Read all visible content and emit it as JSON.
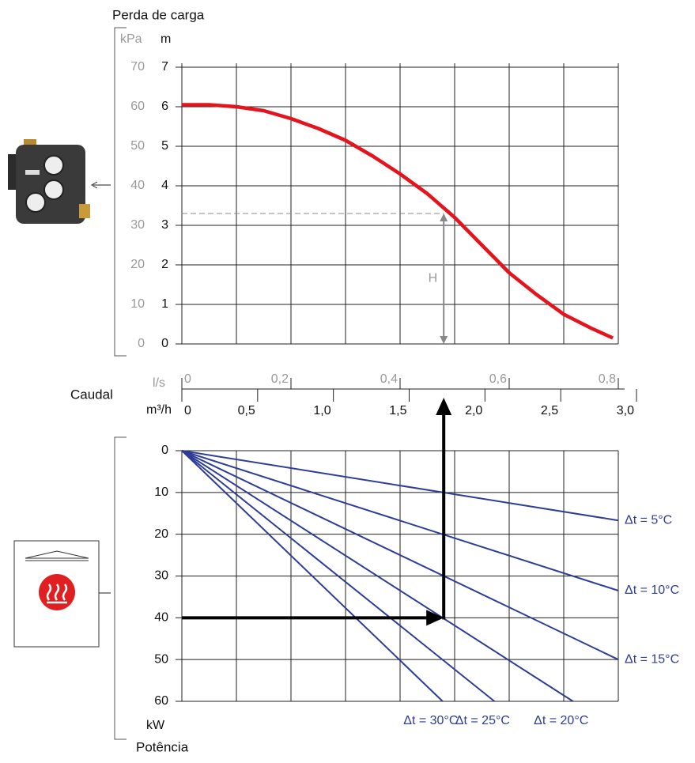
{
  "chart_data": [
    {
      "type": "line",
      "title": "Perda de carga",
      "y_label": "m",
      "y2_label": "kPa",
      "x_label": "Caudal",
      "x_unit": "l/s",
      "x2_unit": "m³/h",
      "xlim": [
        0,
        0.8
      ],
      "xticks": [
        0,
        {
          "value": 0.2,
          "label": "0,2"
        },
        {
          "value": 0.4,
          "label": "0,4"
        },
        {
          "value": 0.6,
          "label": "0,6"
        },
        {
          "value": 0.8,
          "label": "0,8"
        }
      ],
      "xgrid": [
        0,
        0.1,
        0.2,
        0.3,
        0.4,
        0.5,
        0.6,
        0.7,
        0.8
      ],
      "x2lim": [
        0,
        2.88
      ],
      "x2ticks": [
        0,
        {
          "value": 0.5,
          "label": "0,5"
        },
        {
          "value": 1.0,
          "label": "1,0"
        },
        {
          "value": 1.5,
          "label": "1,5"
        },
        {
          "value": 2.0,
          "label": "2,0"
        },
        {
          "value": 2.5,
          "label": "2,5"
        },
        {
          "value": 3.0,
          "label": "3,0"
        }
      ],
      "ylim": [
        0,
        7
      ],
      "yticks": [
        0,
        1,
        2,
        3,
        4,
        5,
        6,
        7
      ],
      "y2lim": [
        0,
        70
      ],
      "y2ticks": [
        0,
        10,
        20,
        30,
        40,
        50,
        60,
        70
      ],
      "x": [
        0,
        0.05,
        0.1,
        0.15,
        0.2,
        0.25,
        0.3,
        0.35,
        0.4,
        0.45,
        0.5,
        0.55,
        0.6,
        0.65,
        0.7,
        0.75,
        0.79
      ],
      "values": [
        6.05,
        6.05,
        6.0,
        5.9,
        5.7,
        5.45,
        5.15,
        4.75,
        4.3,
        3.8,
        3.2,
        2.5,
        1.8,
        1.25,
        0.75,
        0.4,
        0.15
      ],
      "color": "#e5141c",
      "grid": true,
      "annotation": "H",
      "example_flow": 0.48,
      "example_head": 3.3
    },
    {
      "type": "line",
      "title": "Potência",
      "y_label": "kW",
      "y_inverted": true,
      "xlim": [
        0,
        0.8
      ],
      "ylim": [
        0,
        60
      ],
      "yticks": [
        0,
        10,
        20,
        30,
        40,
        50,
        60
      ],
      "grid": true,
      "example_flow": 0.48,
      "example_power": 40,
      "series": [
        {
          "name": "Δt = 5°C",
          "color": "#2e3d96",
          "x": [
            0,
            0.8
          ],
          "values": [
            0,
            16.7
          ]
        },
        {
          "name": "Δt = 10°C",
          "color": "#2e3d96",
          "x": [
            0,
            0.8
          ],
          "values": [
            0,
            33.5
          ]
        },
        {
          "name": "Δt = 15°C",
          "color": "#2e3d96",
          "x": [
            0,
            0.8
          ],
          "values": [
            0,
            50
          ]
        },
        {
          "name": "Δt = 20°C",
          "color": "#2e3d96",
          "x": [
            0,
            0.717
          ],
          "values": [
            0,
            60
          ]
        },
        {
          "name": "Δt = 25°C",
          "color": "#2e3d96",
          "x": [
            0,
            0.573
          ],
          "values": [
            0,
            60
          ]
        },
        {
          "name": "Δt = 30°C",
          "color": "#2e3d96",
          "x": [
            0,
            0.478
          ],
          "values": [
            0,
            60
          ]
        }
      ]
    }
  ]
}
